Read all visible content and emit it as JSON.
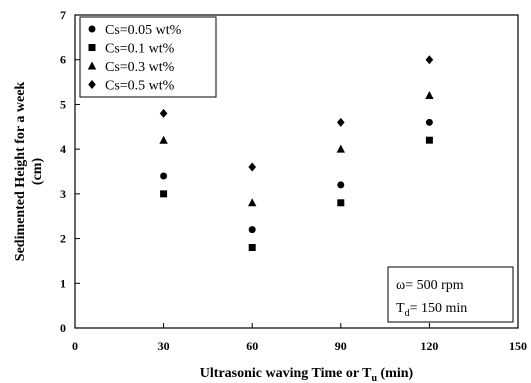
{
  "chart_data": {
    "type": "scatter",
    "title": "",
    "xlabel": "Ultrasonic waving Time or T",
    "xlabel_sub": "u",
    "xlabel_unit": " (min)",
    "ylabel_line1": "Sedimented Height for a week",
    "ylabel_line2": "(cm)",
    "xlim": [
      0,
      150
    ],
    "ylim": [
      0,
      7
    ],
    "xticks": [
      "0",
      "30",
      "60",
      "90",
      "120",
      "150"
    ],
    "yticks": [
      "0",
      "1",
      "2",
      "3",
      "4",
      "5",
      "6",
      "7"
    ],
    "grid": false,
    "legend_position": "top-left",
    "x": [
      30,
      60,
      90,
      120
    ],
    "series": [
      {
        "name": "Cs=0.05 wt%",
        "marker": "circle",
        "values": [
          3.4,
          2.2,
          3.2,
          4.6
        ]
      },
      {
        "name": "Cs=0.1 wt%",
        "marker": "square",
        "values": [
          3.0,
          1.8,
          2.8,
          4.2
        ]
      },
      {
        "name": "Cs=0.3 wt%",
        "marker": "triangle",
        "values": [
          4.2,
          2.8,
          4.0,
          5.2
        ]
      },
      {
        "name": "Cs=0.5 wt%",
        "marker": "diamond",
        "values": [
          4.8,
          3.6,
          4.6,
          6.0
        ]
      }
    ],
    "annotation": {
      "line1": "ω= 500 rpm",
      "line2_main": "T",
      "line2_sub": "d",
      "line2_rest": "= 150 min",
      "position": "bottom-right"
    }
  }
}
